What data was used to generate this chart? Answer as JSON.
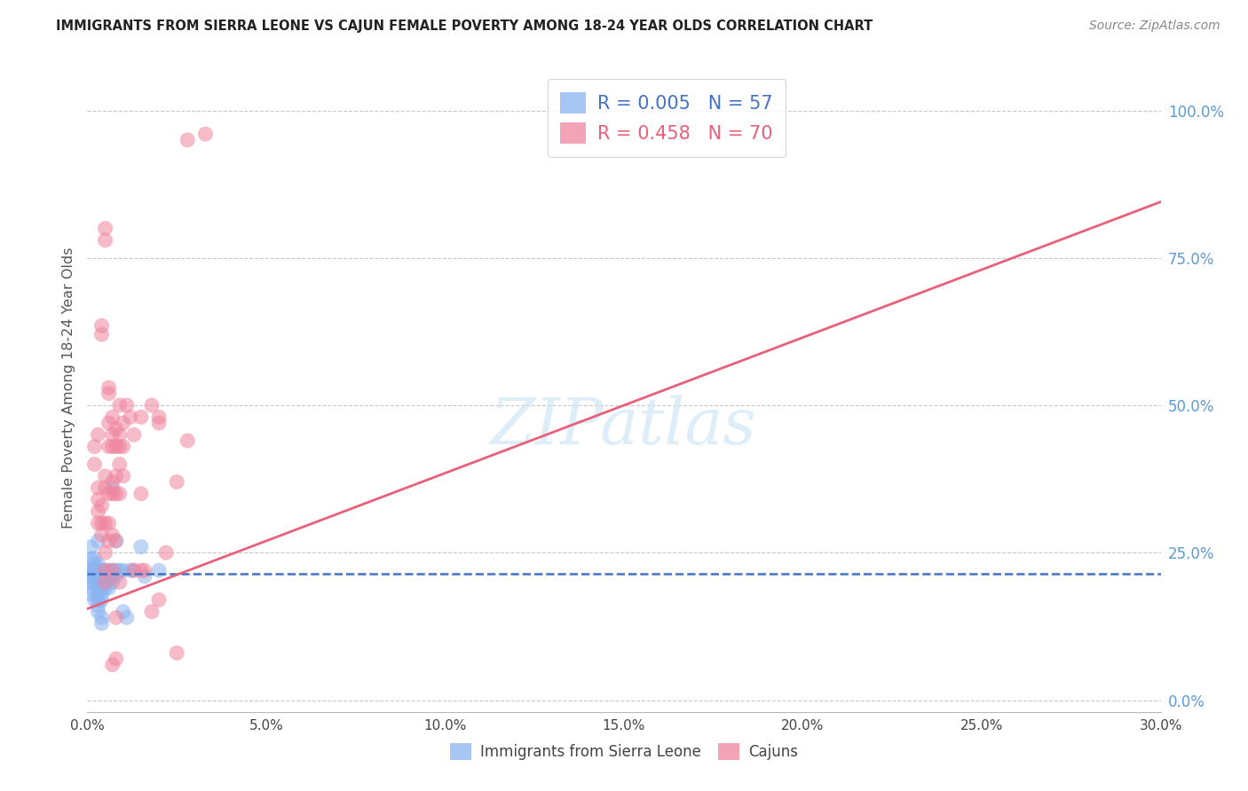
{
  "title": "IMMIGRANTS FROM SIERRA LEONE VS CAJUN FEMALE POVERTY AMONG 18-24 YEAR OLDS CORRELATION CHART",
  "source": "Source: ZipAtlas.com",
  "ylabel": "Female Poverty Among 18-24 Year Olds",
  "xlim": [
    0.0,
    0.3
  ],
  "ylim": [
    -0.02,
    1.08
  ],
  "blue_color": "#8ab4f0",
  "pink_color": "#f0849e",
  "blue_line_color": "#4472c4",
  "pink_line_color": "#e8607a",
  "grid_color": "#c8c8c8",
  "right_axis_color": "#5b9bd5",
  "bottom_axis_color": "#555555",
  "sierra_leone_pts": [
    [
      0.0,
      0.2
    ],
    [
      0.0,
      0.22
    ],
    [
      0.001,
      0.18
    ],
    [
      0.001,
      0.22
    ],
    [
      0.001,
      0.24
    ],
    [
      0.001,
      0.26
    ],
    [
      0.001,
      0.19
    ],
    [
      0.001,
      0.21
    ],
    [
      0.002,
      0.22
    ],
    [
      0.002,
      0.2
    ],
    [
      0.002,
      0.24
    ],
    [
      0.002,
      0.17
    ],
    [
      0.002,
      0.23
    ],
    [
      0.002,
      0.21
    ],
    [
      0.003,
      0.27
    ],
    [
      0.003,
      0.23
    ],
    [
      0.003,
      0.2
    ],
    [
      0.003,
      0.19
    ],
    [
      0.003,
      0.18
    ],
    [
      0.003,
      0.17
    ],
    [
      0.003,
      0.16
    ],
    [
      0.003,
      0.15
    ],
    [
      0.004,
      0.22
    ],
    [
      0.004,
      0.21
    ],
    [
      0.004,
      0.2
    ],
    [
      0.004,
      0.19
    ],
    [
      0.004,
      0.18
    ],
    [
      0.004,
      0.17
    ],
    [
      0.004,
      0.14
    ],
    [
      0.004,
      0.13
    ],
    [
      0.005,
      0.22
    ],
    [
      0.005,
      0.215
    ],
    [
      0.005,
      0.21
    ],
    [
      0.005,
      0.205
    ],
    [
      0.005,
      0.2
    ],
    [
      0.005,
      0.19
    ],
    [
      0.006,
      0.215
    ],
    [
      0.006,
      0.21
    ],
    [
      0.006,
      0.2
    ],
    [
      0.006,
      0.22
    ],
    [
      0.006,
      0.19
    ],
    [
      0.007,
      0.36
    ],
    [
      0.007,
      0.22
    ],
    [
      0.007,
      0.21
    ],
    [
      0.007,
      0.2
    ],
    [
      0.008,
      0.27
    ],
    [
      0.008,
      0.21
    ],
    [
      0.008,
      0.22
    ],
    [
      0.009,
      0.22
    ],
    [
      0.01,
      0.22
    ],
    [
      0.01,
      0.15
    ],
    [
      0.011,
      0.14
    ],
    [
      0.012,
      0.22
    ],
    [
      0.013,
      0.22
    ],
    [
      0.015,
      0.26
    ],
    [
      0.016,
      0.21
    ],
    [
      0.02,
      0.22
    ]
  ],
  "cajun_pts": [
    [
      0.002,
      0.4
    ],
    [
      0.002,
      0.43
    ],
    [
      0.003,
      0.3
    ],
    [
      0.003,
      0.32
    ],
    [
      0.003,
      0.34
    ],
    [
      0.003,
      0.36
    ],
    [
      0.003,
      0.45
    ],
    [
      0.004,
      0.62
    ],
    [
      0.004,
      0.635
    ],
    [
      0.004,
      0.28
    ],
    [
      0.004,
      0.3
    ],
    [
      0.004,
      0.33
    ],
    [
      0.005,
      0.78
    ],
    [
      0.005,
      0.8
    ],
    [
      0.005,
      0.36
    ],
    [
      0.005,
      0.38
    ],
    [
      0.005,
      0.3
    ],
    [
      0.005,
      0.25
    ],
    [
      0.005,
      0.22
    ],
    [
      0.005,
      0.2
    ],
    [
      0.006,
      0.52
    ],
    [
      0.006,
      0.53
    ],
    [
      0.006,
      0.47
    ],
    [
      0.006,
      0.43
    ],
    [
      0.006,
      0.35
    ],
    [
      0.006,
      0.3
    ],
    [
      0.006,
      0.27
    ],
    [
      0.007,
      0.48
    ],
    [
      0.007,
      0.45
    ],
    [
      0.007,
      0.43
    ],
    [
      0.007,
      0.37
    ],
    [
      0.007,
      0.35
    ],
    [
      0.007,
      0.28
    ],
    [
      0.007,
      0.22
    ],
    [
      0.008,
      0.46
    ],
    [
      0.008,
      0.43
    ],
    [
      0.008,
      0.38
    ],
    [
      0.008,
      0.35
    ],
    [
      0.008,
      0.27
    ],
    [
      0.008,
      0.14
    ],
    [
      0.009,
      0.5
    ],
    [
      0.009,
      0.45
    ],
    [
      0.009,
      0.43
    ],
    [
      0.009,
      0.4
    ],
    [
      0.009,
      0.35
    ],
    [
      0.009,
      0.2
    ],
    [
      0.01,
      0.47
    ],
    [
      0.01,
      0.43
    ],
    [
      0.01,
      0.38
    ],
    [
      0.011,
      0.5
    ],
    [
      0.012,
      0.48
    ],
    [
      0.013,
      0.45
    ],
    [
      0.013,
      0.22
    ],
    [
      0.015,
      0.48
    ],
    [
      0.015,
      0.35
    ],
    [
      0.015,
      0.22
    ],
    [
      0.016,
      0.22
    ],
    [
      0.018,
      0.5
    ],
    [
      0.018,
      0.15
    ],
    [
      0.02,
      0.48
    ],
    [
      0.02,
      0.47
    ],
    [
      0.02,
      0.17
    ],
    [
      0.022,
      0.25
    ],
    [
      0.025,
      0.37
    ],
    [
      0.028,
      0.95
    ],
    [
      0.028,
      0.44
    ],
    [
      0.033,
      0.96
    ],
    [
      0.008,
      0.07
    ],
    [
      0.025,
      0.08
    ],
    [
      0.007,
      0.06
    ]
  ],
  "blue_line_x": [
    0.0,
    0.3
  ],
  "blue_line_y": [
    0.215,
    0.215
  ],
  "pink_line_x": [
    0.0,
    0.3
  ],
  "pink_line_y": [
    0.155,
    0.845
  ],
  "xticks": [
    0.0,
    0.05,
    0.1,
    0.15,
    0.2,
    0.25,
    0.3
  ],
  "xticklabels": [
    "0.0%",
    "5.0%",
    "10.0%",
    "15.0%",
    "20.0%",
    "25.0%",
    "30.0%"
  ],
  "yticks": [
    0.0,
    0.25,
    0.5,
    0.75,
    1.0
  ],
  "yticklabels_right": [
    "0.0%",
    "25.0%",
    "50.0%",
    "75.0%",
    "100.0%"
  ]
}
